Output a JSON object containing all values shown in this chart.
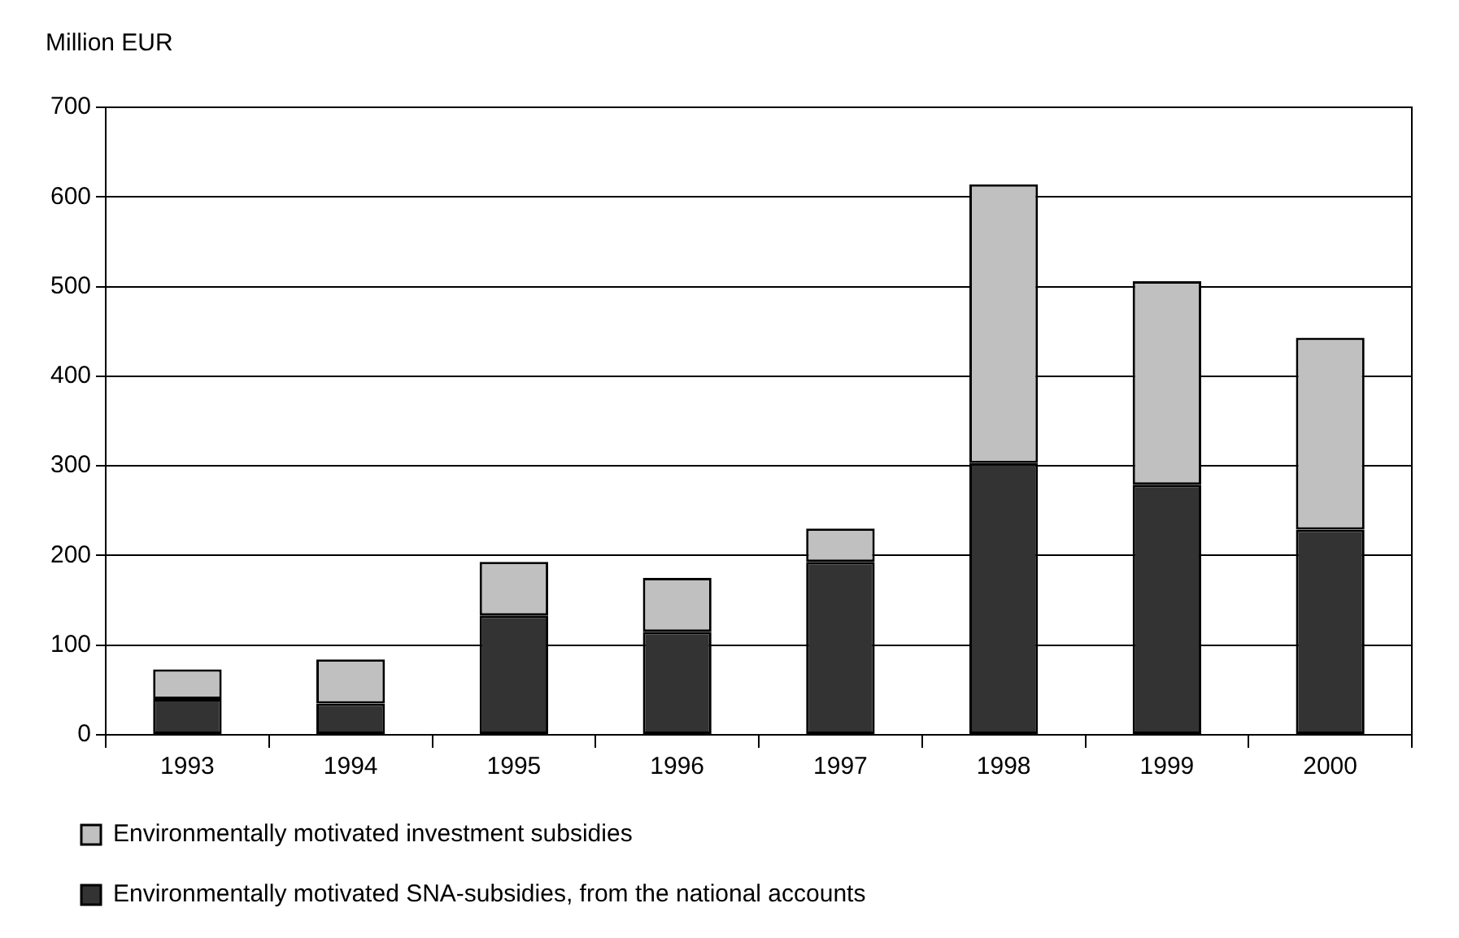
{
  "chart_data": {
    "type": "bar",
    "ylabel": "Million EUR",
    "categories": [
      "1993",
      "1994",
      "1995",
      "1996",
      "1997",
      "1998",
      "1999",
      "2000"
    ],
    "stacked": true,
    "series": [
      {
        "name": "Environmentally motivated SNA-subsidies, from the national accounts",
        "color": "#333333",
        "values": [
          40,
          35,
          133,
          115,
          193,
          303,
          279,
          229
        ]
      },
      {
        "name": "Environmentally motivated investment subsidies",
        "color": "#c0c0c0",
        "values": [
          33,
          49,
          60,
          60,
          37,
          311,
          227,
          214
        ]
      }
    ],
    "ylim": [
      0,
      700
    ],
    "yticks": [
      0,
      100,
      200,
      300,
      400,
      500,
      600,
      700
    ],
    "grid": "y",
    "legend": "bottom"
  }
}
